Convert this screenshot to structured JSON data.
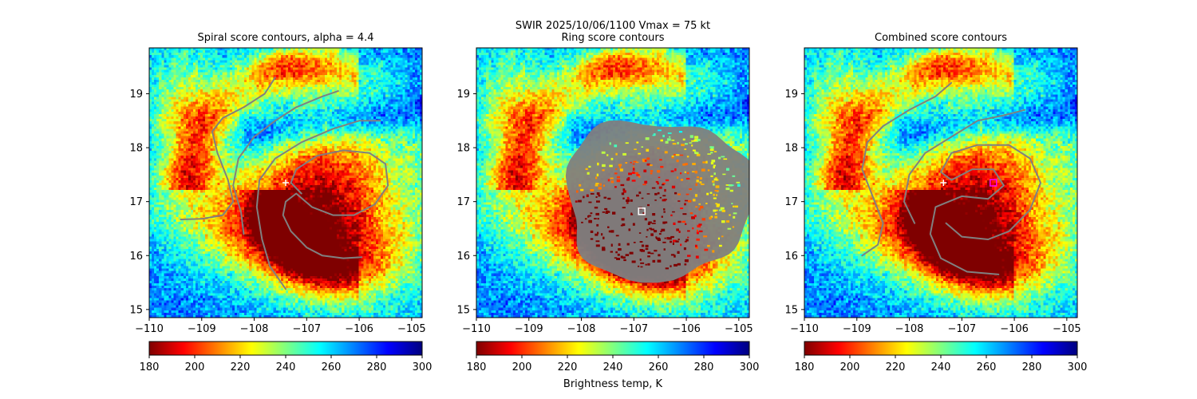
{
  "figure": {
    "suptitle_line1": "SWIR  2025/10/06/1100    Vmax = 75 kt",
    "colorbar_label": "Brightness temp, K"
  },
  "colormap": {
    "name": "jet_r",
    "stops": [
      "#7f0000",
      "#ff0000",
      "#ff8000",
      "#ffff00",
      "#80ff80",
      "#00ffff",
      "#0080ff",
      "#0000ff",
      "#00007f"
    ]
  },
  "chart_data": [
    {
      "type": "heatmap",
      "title": "Spiral score contours, alpha =  4.4",
      "xlim": [
        -110,
        -104.8
      ],
      "ylim": [
        14.85,
        19.85
      ],
      "xticks": [
        -110,
        -109,
        -108,
        -107,
        -106,
        -105
      ],
      "yticks": [
        15,
        16,
        17,
        18,
        19
      ],
      "colorbar": {
        "range": [
          180,
          300
        ],
        "ticks": [
          180,
          200,
          220,
          240,
          260,
          280,
          300
        ]
      },
      "contour_color": "#808080",
      "contours": [
        [
          [
            -109.4,
            16.67
          ],
          [
            -109.0,
            16.68
          ],
          [
            -108.6,
            16.75
          ],
          [
            -108.4,
            17.0
          ],
          [
            -108.5,
            17.4
          ],
          [
            -108.7,
            17.9
          ],
          [
            -108.8,
            18.3
          ],
          [
            -108.6,
            18.55
          ],
          [
            -108.2,
            18.75
          ],
          [
            -107.8,
            19.0
          ],
          [
            -107.6,
            19.3
          ]
        ],
        [
          [
            -108.2,
            16.4
          ],
          [
            -108.25,
            16.8
          ],
          [
            -108.4,
            17.3
          ],
          [
            -108.3,
            17.8
          ],
          [
            -108.0,
            18.2
          ],
          [
            -107.6,
            18.5
          ],
          [
            -107.2,
            18.75
          ],
          [
            -106.7,
            18.95
          ],
          [
            -106.4,
            19.05
          ]
        ],
        [
          [
            -107.4,
            15.38
          ],
          [
            -107.7,
            15.8
          ],
          [
            -107.85,
            16.3
          ],
          [
            -107.95,
            16.9
          ],
          [
            -107.9,
            17.4
          ],
          [
            -107.6,
            17.8
          ],
          [
            -107.1,
            18.1
          ],
          [
            -106.5,
            18.35
          ],
          [
            -106.0,
            18.5
          ],
          [
            -105.6,
            18.5
          ]
        ],
        [
          [
            -105.95,
            15.97
          ],
          [
            -106.3,
            15.95
          ],
          [
            -106.7,
            16.0
          ],
          [
            -107.0,
            16.15
          ],
          [
            -107.3,
            16.45
          ],
          [
            -107.45,
            16.75
          ],
          [
            -107.4,
            17.0
          ],
          [
            -107.2,
            17.15
          ],
          [
            -106.9,
            16.9
          ],
          [
            -106.5,
            16.75
          ],
          [
            -106.1,
            16.75
          ],
          [
            -105.7,
            16.95
          ],
          [
            -105.45,
            17.3
          ],
          [
            -105.5,
            17.7
          ],
          [
            -105.8,
            17.9
          ],
          [
            -106.3,
            17.95
          ],
          [
            -106.8,
            17.85
          ],
          [
            -107.2,
            17.6
          ],
          [
            -107.3,
            17.35
          ],
          [
            -107.1,
            17.15
          ]
        ]
      ],
      "center_marker": {
        "shape": "plus",
        "x": -107.4,
        "y": 17.35,
        "color": "#ffffff"
      }
    },
    {
      "type": "heatmap",
      "title": "Ring score contours",
      "xlim": [
        -110,
        -104.8
      ],
      "ylim": [
        14.85,
        19.85
      ],
      "xticks": [
        -110,
        -109,
        -108,
        -107,
        -106,
        -105
      ],
      "yticks": [
        15,
        16,
        17,
        18,
        19
      ],
      "colorbar": {
        "range": [
          180,
          300
        ],
        "ticks": [
          180,
          200,
          220,
          240,
          260,
          280,
          300
        ]
      },
      "contour_color": "#808080",
      "ring_region": {
        "cx": -106.55,
        "cy": 17.05,
        "rx": 1.75,
        "ry": 1.45
      },
      "center_marker": {
        "shape": "square",
        "x": -106.85,
        "y": 16.82,
        "color": "#ffffff"
      }
    },
    {
      "type": "heatmap",
      "title": "Combined score contours",
      "xlim": [
        -110,
        -104.8
      ],
      "ylim": [
        14.85,
        19.85
      ],
      "xticks": [
        -110,
        -109,
        -108,
        -107,
        -106,
        -105
      ],
      "yticks": [
        15,
        16,
        17,
        18,
        19
      ],
      "colorbar": {
        "range": [
          180,
          300
        ],
        "ticks": [
          180,
          200,
          220,
          240,
          260,
          280,
          300
        ]
      },
      "contour_color": "#808080",
      "contours": [
        [
          [
            -108.9,
            16.0
          ],
          [
            -108.6,
            16.2
          ],
          [
            -108.5,
            16.6
          ],
          [
            -108.7,
            17.1
          ],
          [
            -108.9,
            17.6
          ],
          [
            -108.8,
            18.1
          ],
          [
            -108.5,
            18.4
          ],
          [
            -108.0,
            18.7
          ],
          [
            -107.5,
            18.95
          ],
          [
            -107.2,
            19.2
          ]
        ],
        [
          [
            -107.9,
            16.6
          ],
          [
            -108.1,
            17.0
          ],
          [
            -108.0,
            17.5
          ],
          [
            -107.7,
            17.9
          ],
          [
            -107.2,
            18.2
          ],
          [
            -106.7,
            18.5
          ],
          [
            -106.2,
            18.6
          ],
          [
            -105.8,
            18.7
          ]
        ],
        [
          [
            -106.3,
            15.65
          ],
          [
            -106.9,
            15.7
          ],
          [
            -107.4,
            15.95
          ],
          [
            -107.6,
            16.4
          ],
          [
            -107.5,
            16.9
          ],
          [
            -107.0,
            17.1
          ],
          [
            -106.5,
            17.05
          ],
          [
            -106.2,
            17.3
          ],
          [
            -106.4,
            17.6
          ],
          [
            -106.8,
            17.6
          ],
          [
            -107.2,
            17.4
          ],
          [
            -107.4,
            17.55
          ],
          [
            -107.2,
            17.9
          ],
          [
            -106.7,
            18.05
          ],
          [
            -106.1,
            18.05
          ],
          [
            -105.7,
            17.8
          ],
          [
            -105.5,
            17.35
          ],
          [
            -105.7,
            16.85
          ],
          [
            -106.1,
            16.45
          ],
          [
            -106.5,
            16.3
          ],
          [
            -107.0,
            16.35
          ],
          [
            -107.3,
            16.6
          ]
        ]
      ],
      "center_marker": {
        "shape": "square",
        "x": -106.4,
        "y": 17.35,
        "color": "#ff00ff"
      },
      "secondary_marker": {
        "shape": "plus",
        "x": -107.35,
        "y": 17.35,
        "color": "#ffffff"
      }
    }
  ]
}
